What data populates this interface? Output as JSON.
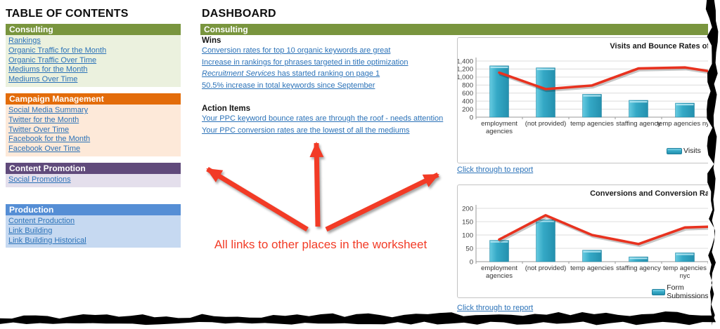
{
  "colors": {
    "header_green": "#79953E",
    "body_green": "#EBF1DE",
    "header_orange": "#E36C0A",
    "body_orange": "#FDE9D9",
    "header_purple": "#604A7B",
    "body_purple": "#E4DFEC",
    "header_blue": "#558ED5",
    "body_blue": "#C6D9F1",
    "link_blue": "#2B72B8",
    "bar_teal": "#35A9C6",
    "line_red": "#E8321F",
    "annotation_red": "#F23B26"
  },
  "toc": {
    "title": "TABLE OF CONTENTS",
    "sections": [
      {
        "name": "Consulting",
        "links": [
          "Rankings",
          "Organic Traffic for the Month",
          "Organic Traffic Over Time",
          "Mediums for the Month",
          "Mediums Over Time"
        ]
      },
      {
        "name": "Campaign Management",
        "links": [
          "Social Media Summary",
          "Twitter for the Month",
          "Twitter Over Time",
          "Facebook for the Month",
          "Facebook Over Time"
        ]
      },
      {
        "name": "Content Promotion",
        "links": [
          "Social Promotions"
        ]
      },
      {
        "name": "Production",
        "links": [
          "Content Production",
          "Link Building",
          "Link Building Historical"
        ]
      }
    ]
  },
  "dashboard": {
    "title": "DASHBOARD",
    "section_header": "Consulting",
    "wins_label": "Wins",
    "wins_links": [
      "Conversion rates for top 10 organic keywords are great",
      "Increase in rankings for phrases targeted in title optimization",
      {
        "italic": "Recruitment Services",
        "rest": " has started ranking on page 1"
      },
      "50.5% increase in total keywords since September"
    ],
    "action_label": "Action Items",
    "action_links": [
      "Your PPC keyword bounce rates are through the roof - needs attention",
      "Your PPC conversion rates are the lowest of all the mediums"
    ]
  },
  "annotation": {
    "text": "All links to other places in the worksheet"
  },
  "chart_data": [
    {
      "type": "bar+line",
      "title": "Visits and Bounce Rates of",
      "categories": [
        "employment agencies",
        "(not provided)",
        "temp agencies",
        "staffing agency",
        "temp agencies nyc",
        ""
      ],
      "series": [
        {
          "name": "Visits",
          "type": "bar",
          "color": "#35A9C6",
          "values": [
            1280,
            1230,
            570,
            420,
            350,
            null
          ]
        },
        {
          "name": "",
          "type": "line",
          "color": "#E8321F",
          "values": [
            1110,
            700,
            790,
            1215,
            1240,
            1060
          ]
        }
      ],
      "ylim": [
        0,
        1400
      ],
      "ystep": 200,
      "grid": true,
      "legend_position": "bottom-right",
      "link_label": "Click through to report"
    },
    {
      "type": "bar+line",
      "title": "Conversions and Conversion Ra",
      "categories": [
        "employment agencies",
        "(not provided)",
        "temp agencies",
        "staffing agency",
        "temp agencies nyc",
        ""
      ],
      "series": [
        {
          "name": "Form Submissions",
          "type": "bar",
          "color": "#35A9C6",
          "values": [
            80,
            157,
            43,
            18,
            33,
            null
          ]
        },
        {
          "name": "",
          "type": "line",
          "color": "#E8321F",
          "values": [
            83,
            174,
            100,
            66,
            128,
            134
          ]
        }
      ],
      "ylim": [
        0,
        200
      ],
      "ystep": 50,
      "grid": true,
      "legend_position": "bottom-right",
      "link_label": "Click through to report"
    }
  ]
}
